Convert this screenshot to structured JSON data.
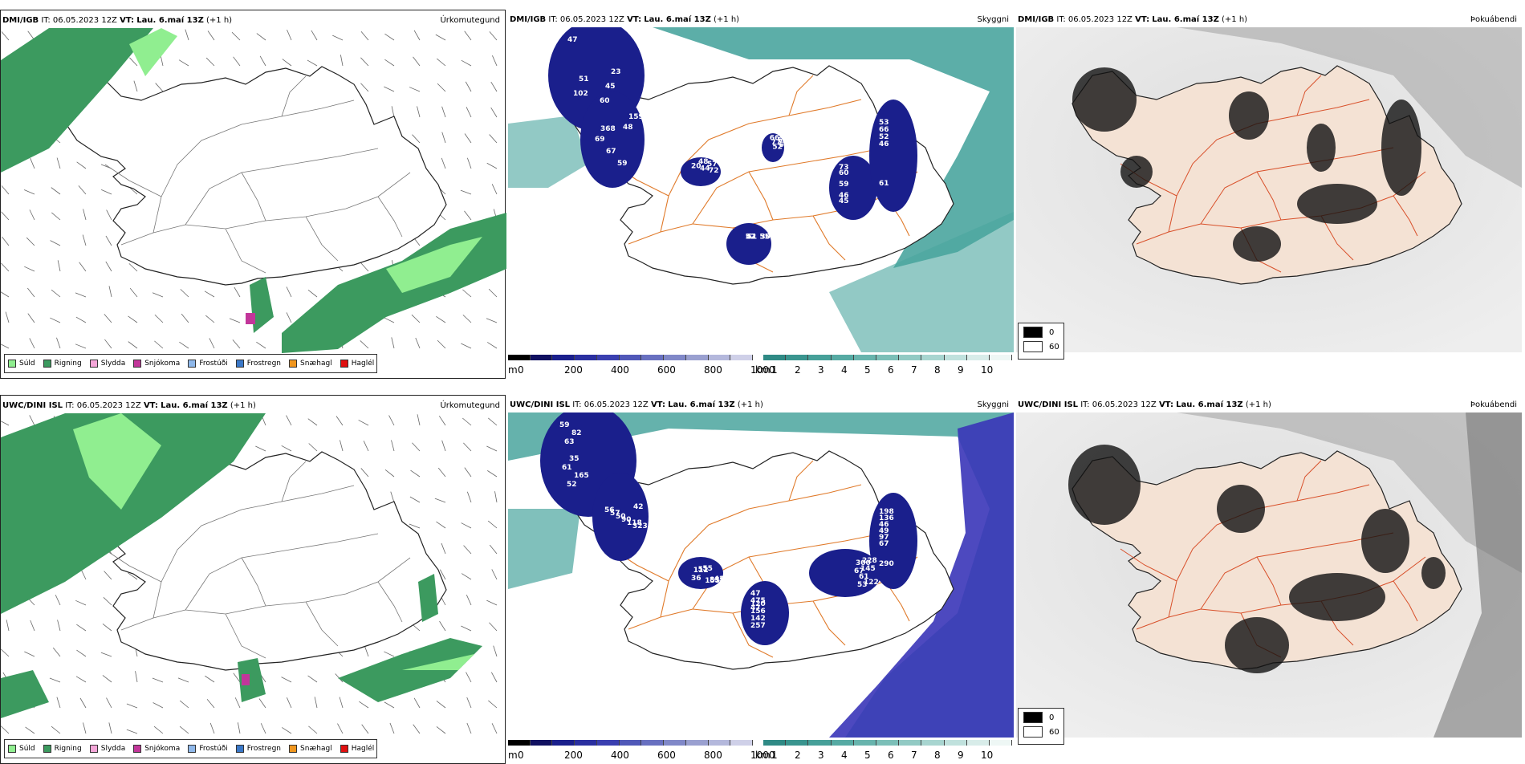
{
  "rows": [
    {
      "model": "DMI/IGB",
      "it_label": "IT:",
      "it_value": "06.05.2023 12Z",
      "vt_label": "VT:",
      "vt_value": "Lau. 6.maí 13Z",
      "lead": "(+1 h)",
      "cloud_labels": [
        "47",
        "48",
        "48",
        "66",
        "45",
        "46",
        "51",
        "60",
        "69",
        "57",
        "63",
        "60",
        "52",
        "30",
        "102",
        "67",
        "20",
        "77",
        "59",
        "66",
        "42",
        "45",
        "59",
        "44",
        "63",
        "46",
        "53",
        "55",
        "51",
        "159",
        "72",
        "52",
        "73",
        "61",
        "52",
        "23",
        "368"
      ]
    },
    {
      "model": "UWC/DINI ISL",
      "it_label": "IT:",
      "it_value": "06.05.2023 12Z",
      "vt_label": "VT:",
      "vt_value": "Lau. 6.maí 13Z",
      "lead": "(+1 h)",
      "cloud_labels": [
        "59",
        "42",
        "36",
        "47",
        "67",
        "67",
        "61",
        "56",
        "55",
        "475",
        "300",
        "97",
        "63",
        "57",
        "43",
        "47",
        "53",
        "49",
        "52",
        "50",
        "51",
        "257",
        "61",
        "46",
        "35",
        "90",
        "839",
        "142",
        "145",
        "136",
        "82",
        "118",
        "112",
        "156",
        "228",
        "198",
        "165",
        "323",
        "155",
        "120",
        "122",
        "290"
      ]
    }
  ],
  "panel_titles": [
    "Úrkomutegund",
    "Skyggni",
    "Þokuábendi"
  ],
  "precip_legend": [
    {
      "label": "Súld",
      "color": "#90ee90"
    },
    {
      "label": "Rigning",
      "color": "#3c9a5f"
    },
    {
      "label": "Slydda",
      "color": "#f4a6d8"
    },
    {
      "label": "Snjókoma",
      "color": "#c2369a"
    },
    {
      "label": "Frostúði",
      "color": "#8fb8ea"
    },
    {
      "label": "Frostregn",
      "color": "#3a78c8"
    },
    {
      "label": "Snæhagl",
      "color": "#f0961e"
    },
    {
      "label": "Haglél",
      "color": "#e01010"
    }
  ],
  "height_scale": {
    "unit": "m",
    "ticks": [
      "0",
      "200",
      "400",
      "600",
      "800",
      "1000"
    ]
  },
  "visibility_scale": {
    "unit": "km",
    "ticks": [
      "1",
      "2",
      "3",
      "4",
      "5",
      "6",
      "7",
      "8",
      "9",
      "10"
    ]
  },
  "fog_legend": [
    {
      "label": "0",
      "color": "#000000"
    },
    {
      "label": "60",
      "color": "#ffffff"
    }
  ],
  "colors": {
    "rain": "#3c9a5f",
    "drizzle": "#90ee90",
    "sea_teal": "#4aa59e",
    "low_cloud": "#1a1f8c",
    "roads": "#e07a2a",
    "land_fog": "#f4e2d4"
  }
}
